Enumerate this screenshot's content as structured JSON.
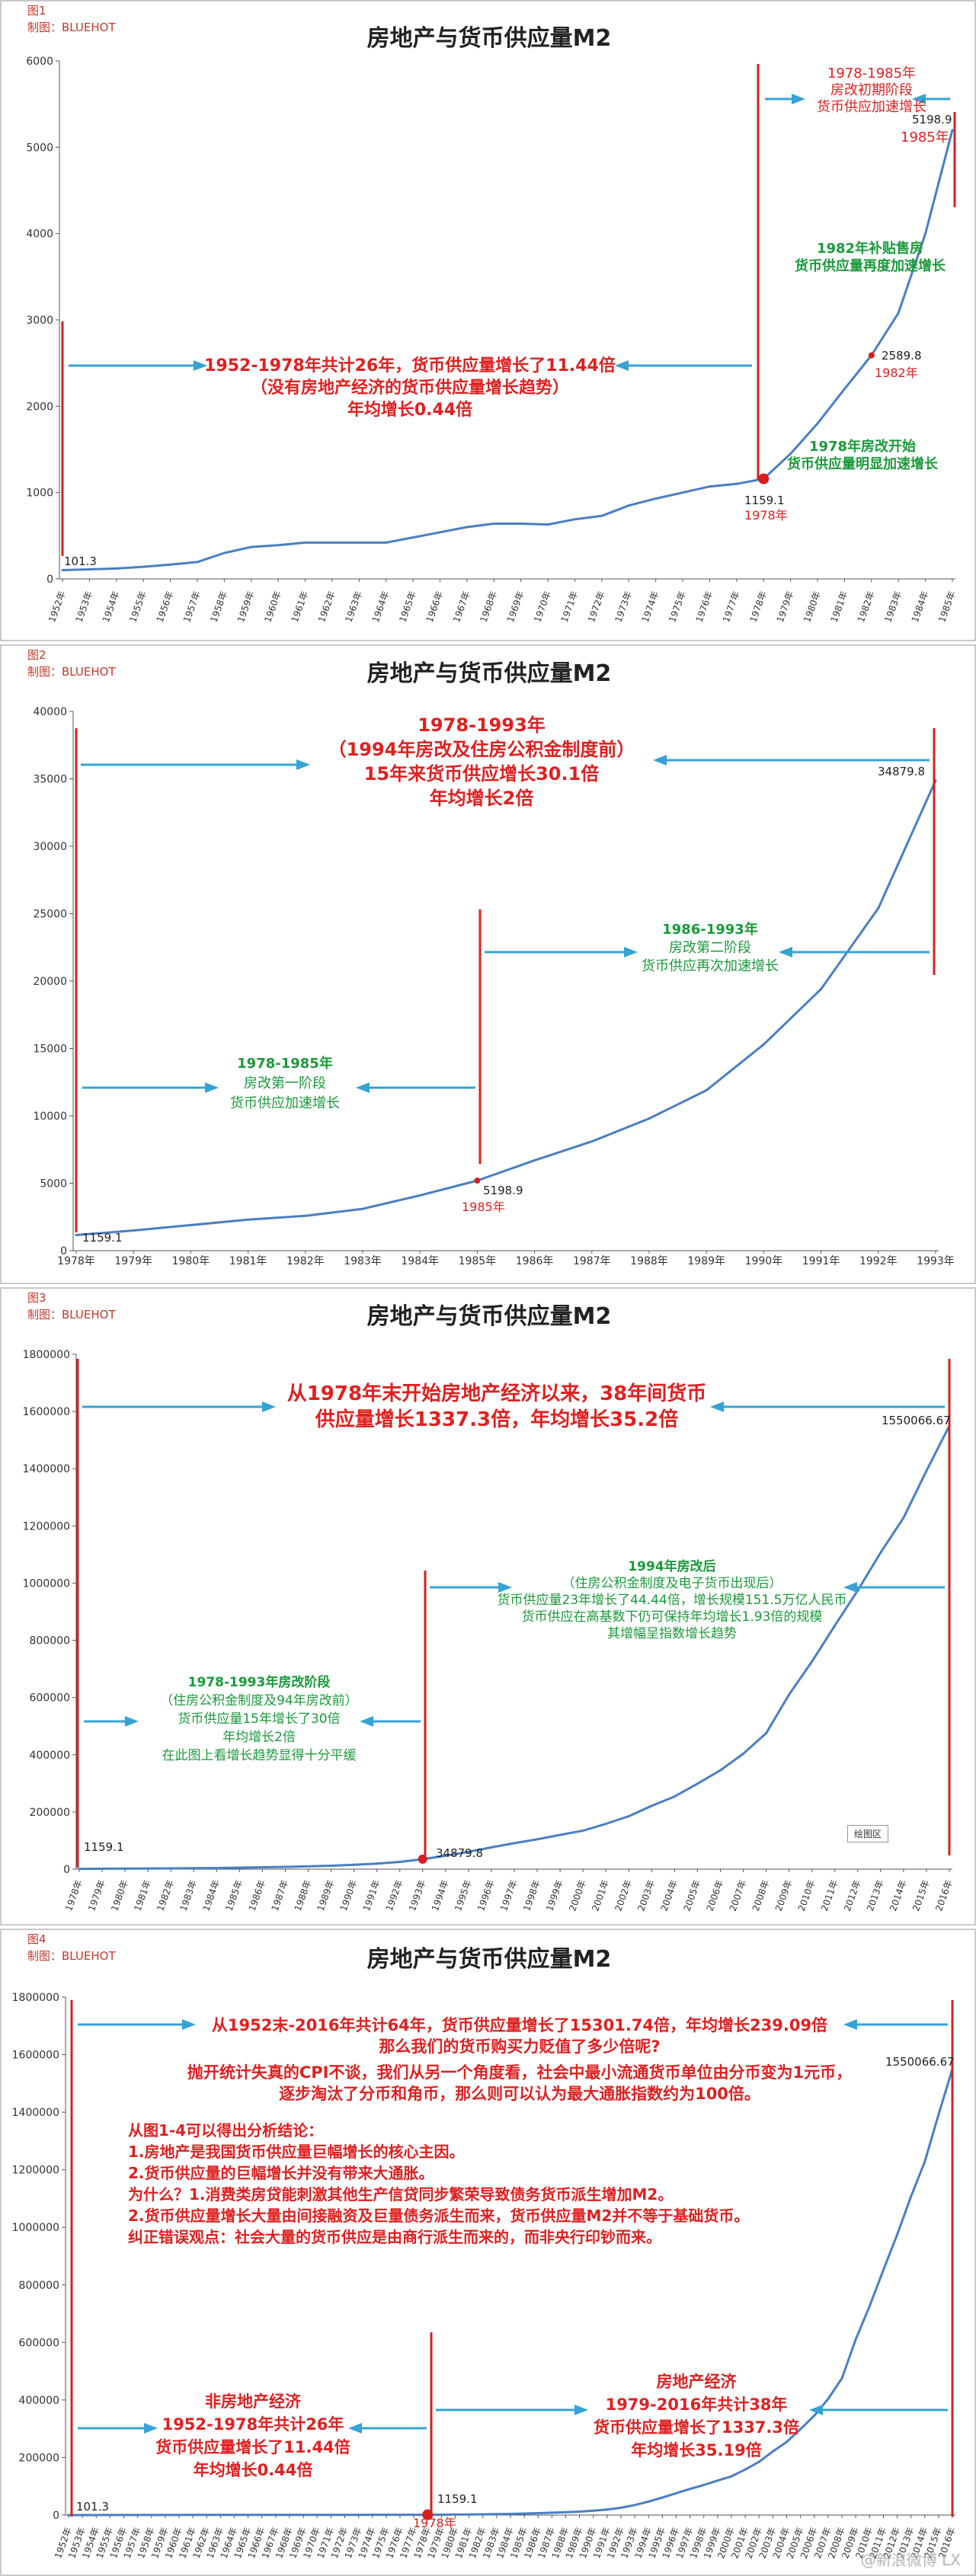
{
  "watermark": "@新浪微博 LX",
  "chart_data": [
    {
      "type": "line",
      "figure_label": "图1",
      "credit": "制图：BLUEHOT",
      "title": "房地产与货币供应量M2",
      "ylim": [
        0,
        6000
      ],
      "yticks": [
        0,
        1000,
        2000,
        3000,
        4000,
        5000,
        6000
      ],
      "x": [
        "1952年",
        "1953年",
        "1954年",
        "1955年",
        "1956年",
        "1957年",
        "1958年",
        "1959年",
        "1960年",
        "1961年",
        "1962年",
        "1963年",
        "1964年",
        "1965年",
        "1966年",
        "1967年",
        "1968年",
        "1969年",
        "1970年",
        "1971年",
        "1972年",
        "1973年",
        "1974年",
        "1975年",
        "1976年",
        "1977年",
        "1978年",
        "1979年",
        "1980年",
        "1981年",
        "1982年",
        "1983年",
        "1984年",
        "1985年"
      ],
      "values": [
        101.3,
        110,
        120,
        140,
        165,
        195,
        300,
        370,
        390,
        420,
        420,
        420,
        420,
        480,
        540,
        600,
        640,
        640,
        630,
        690,
        730,
        850,
        930,
        1000,
        1070,
        1100,
        1159.1,
        1450,
        1800,
        2200,
        2589.8,
        3080,
        4000,
        5198.9
      ],
      "grid": false,
      "annotations": [
        {
          "lines": [
            "1978-1985年",
            "房改初期阶段",
            "货币供应加速增长"
          ],
          "color": "#e02020"
        },
        {
          "lines": [
            "1982年补贴售房",
            "货币供应量再度加速增长"
          ],
          "color": "#1a9a3a"
        },
        {
          "lines": [
            "1952-1978年共计26年，货币供应量增长了11.44倍",
            "（没有房地产经济的货币供应量增长趋势）",
            "年均增长0.44倍"
          ],
          "color": "#e02020"
        },
        {
          "lines": [
            "1978年房改开始",
            "货币供应量明显加速增长"
          ],
          "color": "#1a9a3a"
        }
      ],
      "point_labels": [
        {
          "value": "101.3"
        },
        {
          "value": "1159.1",
          "year": "1978年"
        },
        {
          "value": "2589.8",
          "year": "1982年"
        },
        {
          "value": "5198.9",
          "year": "1985年"
        }
      ]
    },
    {
      "type": "line",
      "figure_label": "图2",
      "credit": "制图：BLUEHOT",
      "title": "房地产与货币供应量M2",
      "ylim": [
        0,
        40000
      ],
      "yticks": [
        0,
        5000,
        10000,
        15000,
        20000,
        25000,
        30000,
        35000,
        40000
      ],
      "x": [
        "1978年",
        "1979年",
        "1980年",
        "1981年",
        "1982年",
        "1983年",
        "1984年",
        "1985年",
        "1986年",
        "1987年",
        "1988年",
        "1989年",
        "1990年",
        "1991年",
        "1992年",
        "1993年"
      ],
      "values": [
        1159.1,
        1500,
        1900,
        2300,
        2589.8,
        3100,
        4100,
        5198.9,
        6700,
        8100,
        9800,
        11900,
        15300,
        19400,
        25400,
        34879.8
      ],
      "grid": false,
      "annotations": [
        {
          "lines": [
            "1978-1993年",
            "（1994年房改及住房公积金制度前）",
            "15年来货币供应增长30.1倍",
            "年均增长2倍"
          ],
          "color": "#e02020"
        },
        {
          "lines": [
            "1986-1993年",
            "房改第二阶段",
            "货币供应再次加速增长"
          ],
          "color": "#1a9a3a"
        },
        {
          "lines": [
            "1978-1985年",
            "房改第一阶段",
            "货币供应加速增长"
          ],
          "color": "#1a9a3a"
        }
      ],
      "point_labels": [
        {
          "value": "1159.1"
        },
        {
          "value": "5198.9",
          "year": "1985年"
        },
        {
          "value": "34879.8"
        }
      ]
    },
    {
      "type": "line",
      "figure_label": "图3",
      "credit": "制图：BLUEHOT",
      "title": "房地产与货币供应量M2",
      "ylim": [
        0,
        1800000
      ],
      "yticks": [
        0,
        200000,
        400000,
        600000,
        800000,
        1000000,
        1200000,
        1400000,
        1600000,
        1800000
      ],
      "x": [
        "1978年",
        "1979年",
        "1980年",
        "1981年",
        "1982年",
        "1983年",
        "1984年",
        "1985年",
        "1986年",
        "1987年",
        "1988年",
        "1989年",
        "1990年",
        "1991年",
        "1992年",
        "1993年",
        "1994年",
        "1995年",
        "1996年",
        "1997年",
        "1998年",
        "1999年",
        "2000年",
        "2001年",
        "2002年",
        "2003年",
        "2004年",
        "2005年",
        "2006年",
        "2007年",
        "2008年",
        "2009年",
        "2010年",
        "2011年",
        "2012年",
        "2013年",
        "2014年",
        "2015年",
        "2016年"
      ],
      "values": [
        1159.1,
        1500,
        1900,
        2300,
        2600,
        3100,
        4100,
        5200,
        6700,
        8100,
        9800,
        11900,
        15300,
        19400,
        25400,
        34879.8,
        46900,
        60800,
        76100,
        90900,
        104500,
        119900,
        134600,
        158300,
        185000,
        221200,
        254100,
        298800,
        345600,
        403400,
        475200,
        610200,
        725800,
        851600,
        974200,
        1106500,
        1228400,
        1392300,
        1550066.67
      ],
      "grid": false,
      "legend_box": "绘图区",
      "annotations": [
        {
          "lines": [
            "从1978年末开始房地产经济以来，38年间货币",
            "供应量增长1337.3倍，年均增长35.2倍"
          ],
          "color": "#e02020"
        },
        {
          "lines": [
            "1994年房改后",
            "（住房公积金制度及电子货币出现后）",
            "货币供应量23年增长了44.44倍，增长规模151.5万亿人民币",
            "货币供应在高基数下仍可保持年均增长1.93倍的规模",
            "其增幅呈指数增长趋势"
          ],
          "color": "#1a9a3a"
        },
        {
          "lines": [
            "1978-1993年房改阶段",
            "（住房公积金制度及94年房改前）",
            "货币供应量15年增长了30倍",
            "年均增长2倍",
            "在此图上看增长趋势显得十分平缓"
          ],
          "color": "#1a9a3a"
        }
      ],
      "point_labels": [
        {
          "value": "1159.1"
        },
        {
          "value": "34879.8"
        },
        {
          "value": "1550066.67"
        }
      ]
    },
    {
      "type": "line",
      "figure_label": "图4",
      "credit": "制图：BLUEHOT",
      "title": "房地产与货币供应量M2",
      "ylim": [
        0,
        1800000
      ],
      "yticks": [
        0,
        200000,
        400000,
        600000,
        800000,
        1000000,
        1200000,
        1400000,
        1600000,
        1800000
      ],
      "x": [
        "1952年",
        "1953年",
        "1954年",
        "1955年",
        "1956年",
        "1957年",
        "1958年",
        "1959年",
        "1960年",
        "1961年",
        "1962年",
        "1963年",
        "1964年",
        "1965年",
        "1966年",
        "1967年",
        "1968年",
        "1969年",
        "1970年",
        "1971年",
        "1972年",
        "1973年",
        "1974年",
        "1975年",
        "1976年",
        "1977年",
        "1978年",
        "1979年",
        "1980年",
        "1981年",
        "1982年",
        "1983年",
        "1984年",
        "1985年",
        "1986年",
        "1987年",
        "1988年",
        "1989年",
        "1990年",
        "1991年",
        "1992年",
        "1993年",
        "1994年",
        "1995年",
        "1996年",
        "1997年",
        "1998年",
        "1999年",
        "2000年",
        "2001年",
        "2002年",
        "2003年",
        "2004年",
        "2005年",
        "2006年",
        "2007年",
        "2008年",
        "2009年",
        "2010年",
        "2011年",
        "2012年",
        "2013年",
        "2014年",
        "2015年",
        "2016年"
      ],
      "values": [
        101.3,
        110,
        120,
        140,
        165,
        195,
        300,
        370,
        390,
        420,
        420,
        420,
        420,
        480,
        540,
        600,
        640,
        640,
        630,
        690,
        730,
        850,
        930,
        1000,
        1070,
        1100,
        1159.1,
        1450,
        1800,
        2200,
        2589.8,
        3080,
        4000,
        5198.9,
        6700,
        8100,
        9800,
        11900,
        15300,
        19400,
        25400,
        34879.8,
        46900,
        60800,
        76100,
        90900,
        104500,
        119900,
        134600,
        158300,
        185000,
        221200,
        254100,
        298800,
        345600,
        403400,
        475200,
        610200,
        725800,
        851600,
        974200,
        1106500,
        1228400,
        1392300,
        1550066.67
      ],
      "grid": false,
      "annotations": [
        {
          "lines": [
            "从1952末-2016年共计64年，货币供应量增长了15301.74倍，年均增长239.09倍",
            "那么我们的货币购买力贬值了多少倍呢?",
            "抛开统计失真的CPI不谈，我们从另一个角度看，社会中最小流通货币单位由分币变为1元币，",
            "逐步淘汰了分币和角币，那么则可以认为最大通胀指数约为100倍。"
          ],
          "color": "#e02020"
        },
        {
          "lines": [
            "从图1-4可以得出分析结论：",
            "1.房地产是我国货币供应量巨幅增长的核心主因。",
            "2.货币供应量的巨幅增长并没有带来大通胀。",
            "为什么？1.消费类房贷能刺激其他生产信贷同步繁荣导致债务货币派生增加M2。",
            "2.货币供应量增长大量由间接融资及巨量债务派生而来，货币供应量M2并不等于基础货币。",
            "纠正错误观点：社会大量的货币供应是由商行派生而来的，而非央行印钞而来。"
          ],
          "color": "#e02020"
        },
        {
          "lines": [
            "非房地产经济",
            "1952-1978年共计26年",
            "货币供应量增长了11.44倍",
            "年均增长0.44倍"
          ],
          "color": "#e02020"
        },
        {
          "lines": [
            "房地产经济",
            "1979-2016年共计38年",
            "货币供应量增长了1337.3倍",
            "年均增长35.19倍"
          ],
          "color": "#e02020"
        }
      ],
      "point_labels": [
        {
          "value": "101.3"
        },
        {
          "value": "1159.1",
          "year": "1978年"
        },
        {
          "value": "1550066.67"
        }
      ]
    }
  ]
}
